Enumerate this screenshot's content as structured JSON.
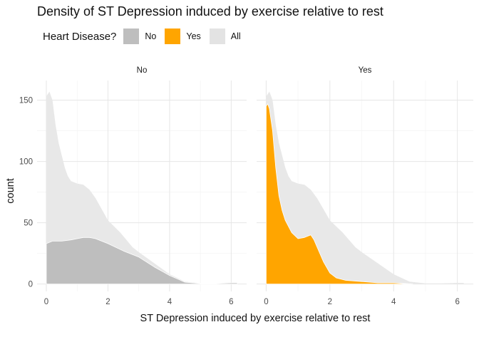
{
  "chart_data": {
    "type": "area",
    "title": "Density of ST Depression induced by exercise relative to rest",
    "xlabel": "ST Depression induced by exercise relative to rest",
    "ylabel": "count",
    "xlim": [
      -0.3,
      6.5
    ],
    "ylim": [
      -6,
      166
    ],
    "x_ticks": [
      0,
      2,
      4,
      6
    ],
    "y_ticks": [
      0,
      50,
      100,
      150
    ],
    "grid": true,
    "legend": {
      "title": "Heart Disease?",
      "placement": "top-left",
      "entries": [
        {
          "label": "No",
          "color": "#bebebe"
        },
        {
          "label": "Yes",
          "color": "#ffa500"
        },
        {
          "label": "All",
          "color": "#e3e3e3"
        }
      ]
    },
    "panels": [
      {
        "label": "No",
        "series": [
          {
            "name": "All",
            "color": "#e8e8e8",
            "x": [
              0,
              0.1,
              0.2,
              0.3,
              0.4,
              0.5,
              0.6,
              0.7,
              0.8,
              1.0,
              1.2,
              1.4,
              1.6,
              1.8,
              2.0,
              2.4,
              2.8,
              3.0,
              3.5,
              4.0,
              4.5,
              5.0,
              5.5,
              6.0,
              6.2
            ],
            "y": [
              153,
              157,
              150,
              130,
              115,
              105,
              95,
              88,
              84,
              82,
              81,
              77,
              70,
              61,
              52,
              42,
              30,
              26,
              17,
              8,
              2,
              0.5,
              0.5,
              1,
              1
            ]
          },
          {
            "name": "No",
            "color": "#bebebe",
            "x": [
              0,
              0.2,
              0.5,
              0.8,
              1.0,
              1.2,
              1.4,
              1.6,
              2.0,
              2.5,
              3.0,
              3.5,
              4.0,
              4.5,
              5.0,
              5.5,
              6.0,
              6.2
            ],
            "y": [
              33,
              35,
              35,
              36,
              37,
              38,
              38,
              37,
              33,
              27,
              22,
              14,
              7,
              1.5,
              0.5,
              0.5,
              1,
              1
            ]
          }
        ]
      },
      {
        "label": "Yes",
        "series": [
          {
            "name": "All",
            "color": "#e8e8e8",
            "x": [
              0,
              0.1,
              0.2,
              0.3,
              0.4,
              0.5,
              0.6,
              0.7,
              0.8,
              1.0,
              1.2,
              1.4,
              1.6,
              1.8,
              2.0,
              2.4,
              2.8,
              3.0,
              3.5,
              4.0,
              4.5,
              5.0,
              5.5,
              6.0,
              6.2
            ],
            "y": [
              153,
              157,
              150,
              130,
              115,
              105,
              95,
              88,
              84,
              82,
              81,
              77,
              70,
              61,
              52,
              42,
              30,
              26,
              17,
              8,
              2,
              0.5,
              0.5,
              1,
              1
            ]
          },
          {
            "name": "Yes",
            "color": "#ffa500",
            "x": [
              0,
              0.05,
              0.1,
              0.2,
              0.3,
              0.4,
              0.5,
              0.6,
              0.8,
              1.0,
              1.2,
              1.4,
              1.5,
              1.6,
              1.8,
              2.0,
              2.2,
              2.5,
              3.0,
              3.5,
              4.0,
              4.3,
              4.6
            ],
            "y": [
              145,
              147,
              143,
              125,
              95,
              72,
              60,
              52,
              42,
              37,
              38,
              40,
              36,
              30,
              18,
              9,
              5,
              3,
              2,
              1,
              1,
              0.5,
              0
            ]
          }
        ]
      }
    ]
  }
}
